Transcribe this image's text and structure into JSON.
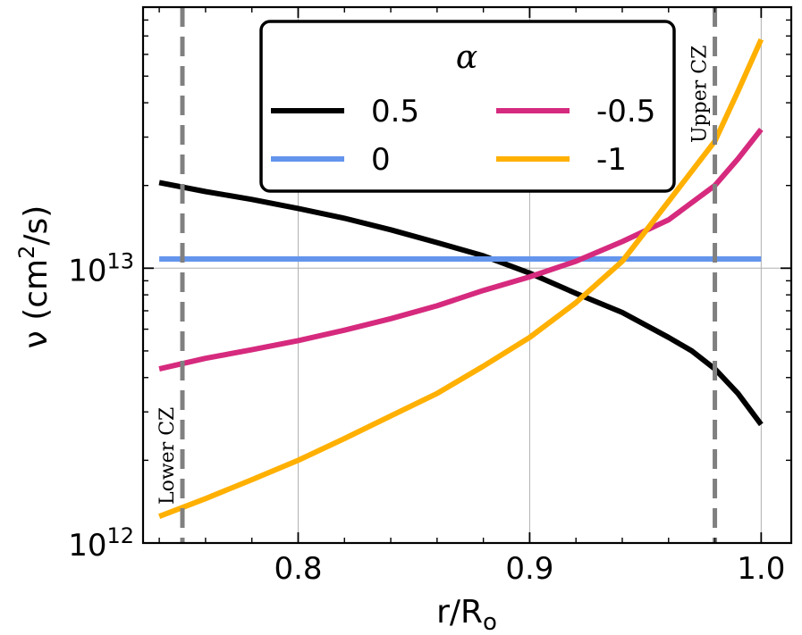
{
  "chart_data": {
    "type": "line",
    "xlabel": "r/R",
    "xlabel_sub": "o",
    "ylabel_prefix": "ν (cm",
    "ylabel_sup": "2",
    "ylabel_suffix": "/s)",
    "xlim": [
      0.733,
      1.013
    ],
    "ylim_log10": [
      12.0,
      13.95
    ],
    "yscale": "log",
    "grid": true,
    "xticks": [
      0.8,
      0.9,
      1.0
    ],
    "xtick_labels": [
      "0.8",
      "0.9",
      "1.0"
    ],
    "yticks": [
      {
        "base": "10",
        "exp": "12",
        "value": 1000000000000.0
      },
      {
        "base": "10",
        "exp": "13",
        "value": 10000000000000.0
      }
    ],
    "legend": {
      "title": "α",
      "position": "top-center",
      "columns": 2,
      "entries": [
        "0.5",
        "0",
        "-0.5",
        "-1"
      ]
    },
    "annotations": [
      {
        "text": "Lower CZ",
        "x": 0.75,
        "rotation": "vertical"
      },
      {
        "text": "Upper CZ",
        "x": 0.98,
        "rotation": "vertical"
      }
    ],
    "vlines": [
      0.75,
      0.98
    ],
    "series": [
      {
        "name": "0.5",
        "color": "#000000",
        "x": [
          0.74,
          0.76,
          0.78,
          0.8,
          0.82,
          0.84,
          0.86,
          0.88,
          0.9,
          0.92,
          0.94,
          0.96,
          0.97,
          0.98,
          0.99,
          1.0
        ],
        "y": [
          20500000000000.0,
          19000000000000.0,
          17800000000000.0,
          16500000000000.0,
          15200000000000.0,
          13800000000000.0,
          12400000000000.0,
          11100000000000.0,
          9600000000000.0,
          8100000000000.0,
          6900000000000.0,
          5600000000000.0,
          5000000000000.0,
          4300000000000.0,
          3500000000000.0,
          2700000000000.0
        ]
      },
      {
        "name": "0",
        "color": "#6495ED",
        "x": [
          0.74,
          1.0
        ],
        "y": [
          10800000000000.0,
          10800000000000.0
        ]
      },
      {
        "name": "-0.5",
        "color": "#D62A7E",
        "x": [
          0.74,
          0.76,
          0.78,
          0.8,
          0.82,
          0.84,
          0.86,
          0.88,
          0.9,
          0.92,
          0.94,
          0.96,
          0.98,
          0.99,
          1.0
        ],
        "y": [
          4300000000000.0,
          4700000000000.0,
          5050000000000.0,
          5450000000000.0,
          5950000000000.0,
          6550000000000.0,
          7300000000000.0,
          8300000000000.0,
          9300000000000.0,
          10600000000000.0,
          12500000000000.0,
          15000000000000.0,
          20000000000000.0,
          25000000000000.0,
          32000000000000.0
        ]
      },
      {
        "name": "-1",
        "color": "#FFB000",
        "x": [
          0.74,
          0.76,
          0.78,
          0.8,
          0.82,
          0.84,
          0.86,
          0.88,
          0.9,
          0.92,
          0.94,
          0.96,
          0.98,
          0.99,
          1.0
        ],
        "y": [
          1250000000000.0,
          1450000000000.0,
          1700000000000.0,
          2000000000000.0,
          2400000000000.0,
          2900000000000.0,
          3500000000000.0,
          4400000000000.0,
          5600000000000.0,
          7500000000000.0,
          10600000000000.0,
          17500000000000.0,
          29000000000000.0,
          44000000000000.0,
          68000000000000.0
        ]
      }
    ]
  }
}
